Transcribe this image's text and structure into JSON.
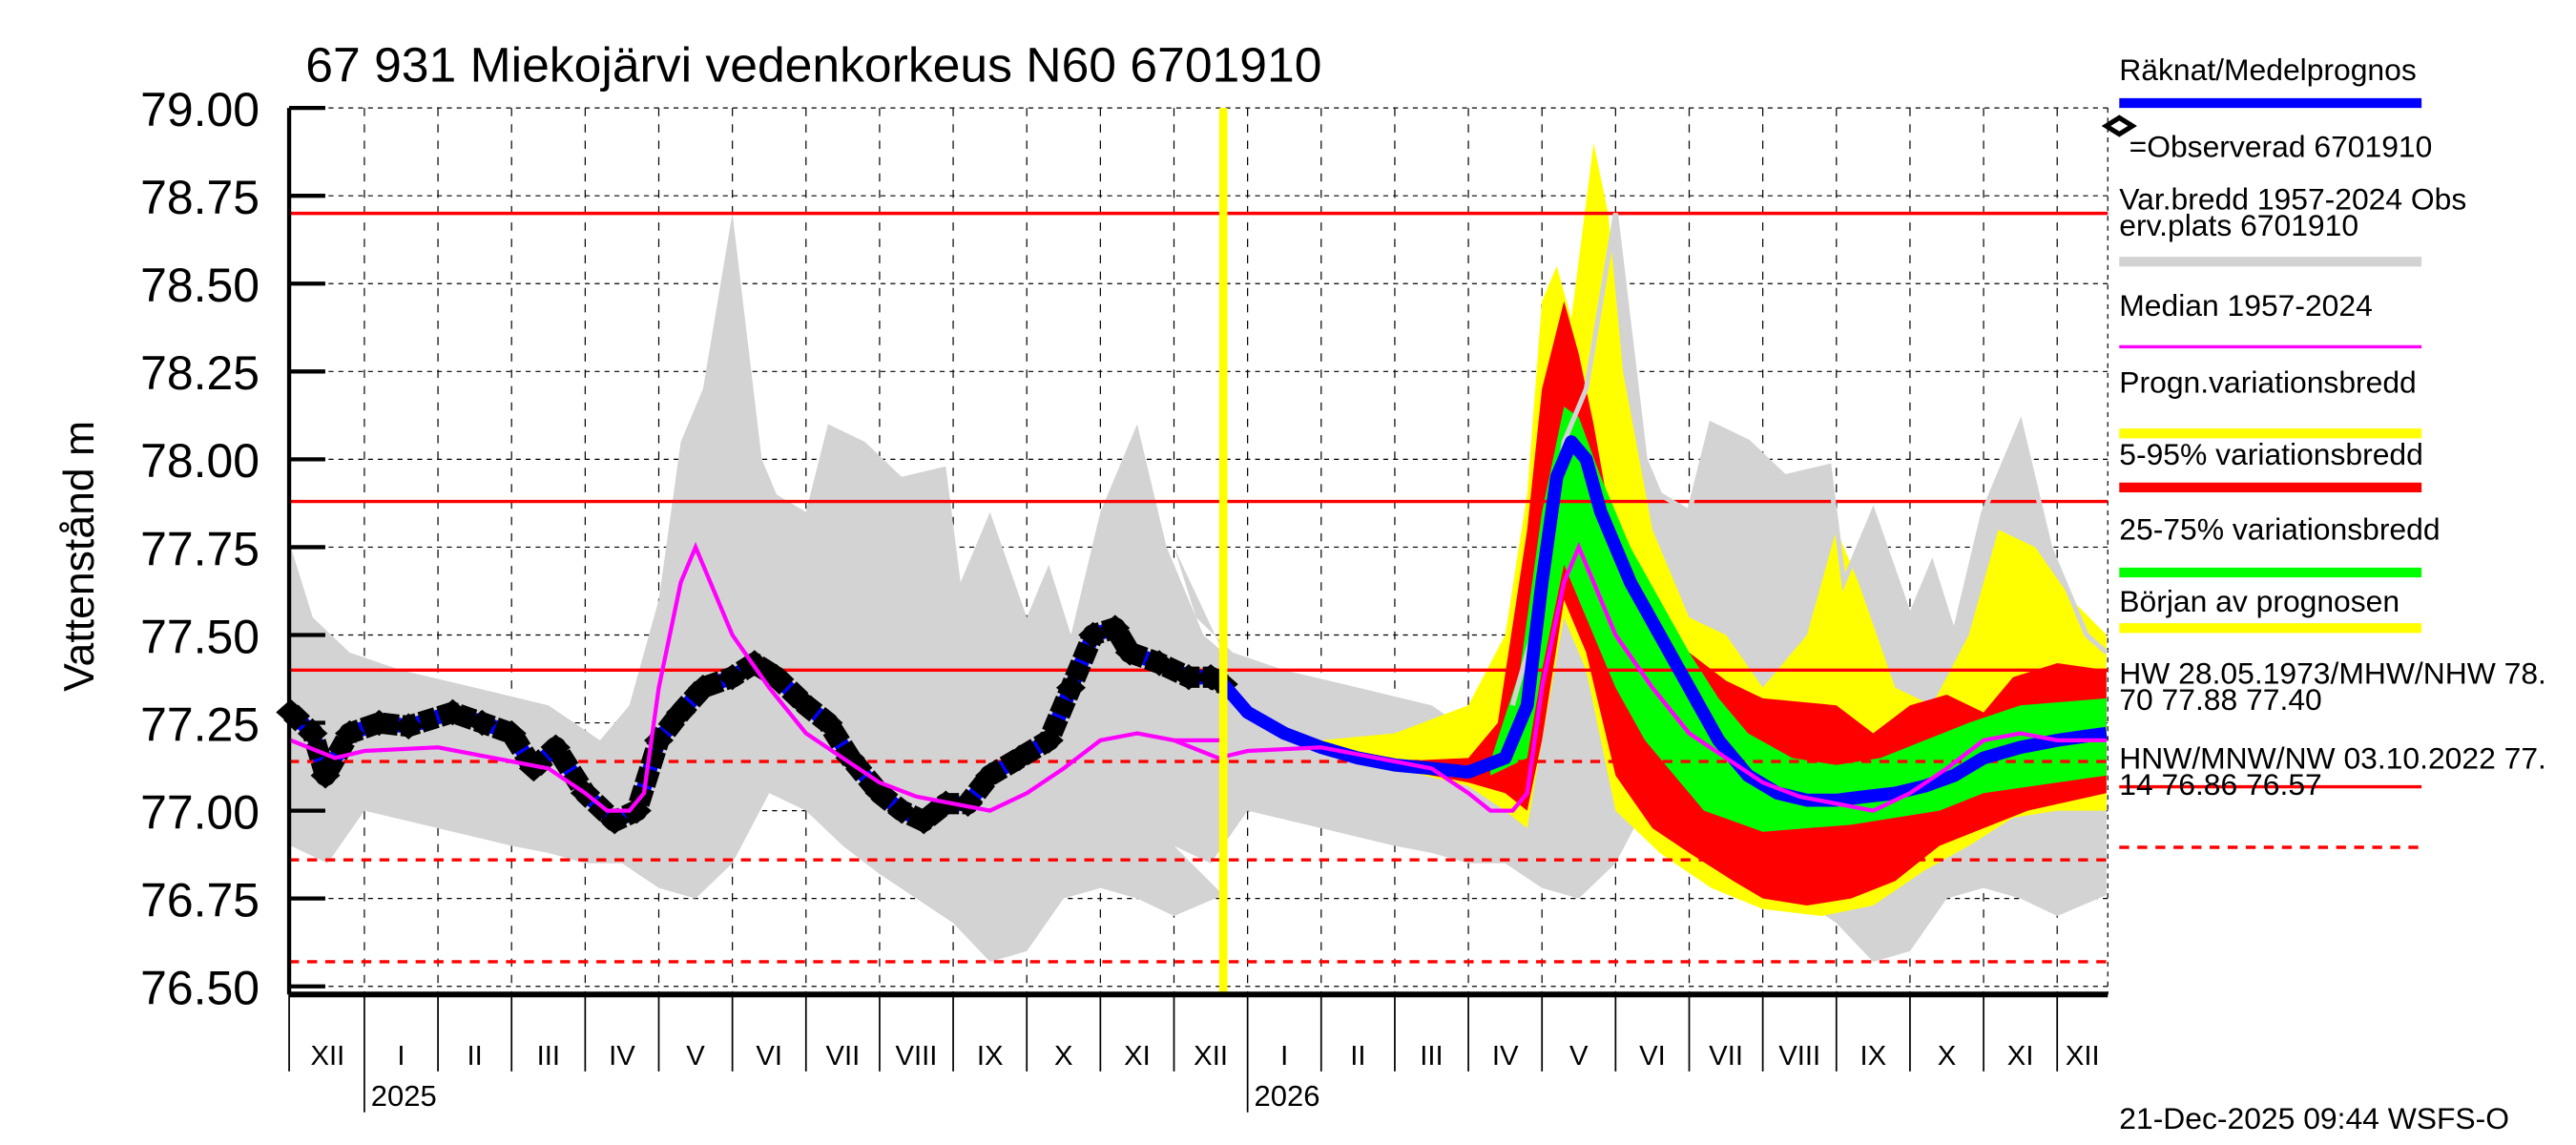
{
  "chart_data": {
    "type": "area",
    "title": "67 931 Miekojärvi vedenkorkeus N60 6701910",
    "ylabel": "Vattenstånd m",
    "ylim": [
      76.5,
      79.0
    ],
    "yticks": [
      "79.00",
      "78.75",
      "78.50",
      "78.25",
      "78.00",
      "77.75",
      "77.50",
      "77.25",
      "77.00",
      "76.75",
      "76.50"
    ],
    "x_unit": "months since 1 Dec 2024",
    "xlim": [
      0,
      24.67
    ],
    "month_labels": [
      "XII",
      "I",
      "II",
      "III",
      "IV",
      "V",
      "VI",
      "VII",
      "VIII",
      "IX",
      "X",
      "XI",
      "XII",
      "I",
      "II",
      "III",
      "IV",
      "V",
      "VI",
      "VII",
      "VIII",
      "IX",
      "X",
      "XI",
      "XII"
    ],
    "year_labels": [
      {
        "label": "2025",
        "month": 1
      },
      {
        "label": "2026",
        "month": 13
      }
    ],
    "forecast_start": 12.67,
    "grid": true,
    "legend_position": "right",
    "legend": [
      {
        "label": "Räknat/Medelprognos",
        "color": "#0000ff"
      },
      {
        "label": "=Observerad 6701910",
        "color": "#000000"
      },
      {
        "label": "Var.bredd 1957-2024   Obs",
        "label2": "erv.plats 6701910",
        "color": "#d3d3d3"
      },
      {
        "label": "Median 1957-2024",
        "color": "#ff00ff"
      },
      {
        "label": "Progn.variationsbredd",
        "color": "#ffff00"
      },
      {
        "label": "5-95% variationsbredd",
        "color": "#ff0000"
      },
      {
        "label": "25-75% variationsbredd",
        "color": "#00ff00"
      },
      {
        "label": "Början av prognosen",
        "color": "#ffff00"
      },
      {
        "label": "HW 28.05.1973/MHW/NHW 78.",
        "label2": "70 77.88 77.40",
        "color": "#ff0000"
      },
      {
        "label": "HNW/MNW/NW 03.10.2022 77.",
        "label2": "14 76.86 76.57",
        "color": "#ff0000",
        "dashed": true
      }
    ],
    "ref_lines_solid": [
      78.7,
      77.88,
      77.4
    ],
    "ref_lines_dashed": [
      77.14,
      76.86,
      76.57
    ],
    "climatology_repeats_months": 12,
    "hist_upper": [
      [
        0,
        77.75
      ],
      [
        0.3,
        77.55
      ],
      [
        0.8,
        77.45
      ],
      [
        1.5,
        77.4
      ],
      [
        2.5,
        77.35
      ],
      [
        3.5,
        77.3
      ],
      [
        4.2,
        77.2
      ],
      [
        4.6,
        77.3
      ],
      [
        5.0,
        77.6
      ],
      [
        5.3,
        78.05
      ],
      [
        5.6,
        78.2
      ],
      [
        6.0,
        78.7
      ],
      [
        6.4,
        78.0
      ],
      [
        6.6,
        77.9
      ],
      [
        7.0,
        77.85
      ],
      [
        7.3,
        78.1
      ],
      [
        7.8,
        78.05
      ],
      [
        8.3,
        77.95
      ],
      [
        8.9,
        77.98
      ],
      [
        9.1,
        77.65
      ],
      [
        9.5,
        77.85
      ],
      [
        10,
        77.55
      ],
      [
        10.3,
        77.7
      ],
      [
        10.6,
        77.5
      ],
      [
        11.0,
        77.85
      ],
      [
        11.5,
        78.1
      ],
      [
        11.9,
        77.75
      ],
      [
        12.4,
        77.5
      ],
      [
        12.67,
        77.45
      ]
    ],
    "hist_lower": [
      [
        0,
        76.9
      ],
      [
        0.5,
        76.85
      ],
      [
        1,
        77.0
      ],
      [
        2,
        76.95
      ],
      [
        3,
        76.9
      ],
      [
        3.5,
        76.88
      ],
      [
        4,
        76.85
      ],
      [
        4.5,
        76.85
      ],
      [
        5,
        76.78
      ],
      [
        5.5,
        76.75
      ],
      [
        6,
        76.85
      ],
      [
        6.5,
        77.05
      ],
      [
        7,
        77.0
      ],
      [
        7.5,
        76.9
      ],
      [
        8,
        76.82
      ],
      [
        8.5,
        76.75
      ],
      [
        9,
        76.68
      ],
      [
        9.5,
        76.57
      ],
      [
        10,
        76.6
      ],
      [
        10.5,
        76.75
      ],
      [
        11,
        76.78
      ],
      [
        11.5,
        76.75
      ],
      [
        12,
        76.7
      ],
      [
        12.67,
        76.76
      ]
    ],
    "median": [
      [
        0,
        77.2
      ],
      [
        0.6,
        77.15
      ],
      [
        1,
        77.17
      ],
      [
        2,
        77.18
      ],
      [
        2.5,
        77.16
      ],
      [
        3,
        77.14
      ],
      [
        3.5,
        77.12
      ],
      [
        4,
        77.05
      ],
      [
        4.3,
        77.0
      ],
      [
        4.6,
        77.0
      ],
      [
        4.8,
        77.05
      ],
      [
        5.0,
        77.35
      ],
      [
        5.3,
        77.65
      ],
      [
        5.5,
        77.75
      ],
      [
        5.7,
        77.65
      ],
      [
        6.0,
        77.5
      ],
      [
        6.5,
        77.35
      ],
      [
        7,
        77.22
      ],
      [
        7.5,
        77.15
      ],
      [
        8,
        77.08
      ],
      [
        8.5,
        77.04
      ],
      [
        9,
        77.02
      ],
      [
        9.5,
        77.0
      ],
      [
        10,
        77.05
      ],
      [
        10.5,
        77.12
      ],
      [
        11,
        77.2
      ],
      [
        11.5,
        77.22
      ],
      [
        12,
        77.2
      ],
      [
        12.67,
        77.2
      ]
    ],
    "observed": [
      [
        0,
        77.28
      ],
      [
        0.3,
        77.22
      ],
      [
        0.47,
        77.1
      ],
      [
        0.8,
        77.22
      ],
      [
        1.2,
        77.25
      ],
      [
        1.6,
        77.24
      ],
      [
        2.2,
        77.28
      ],
      [
        2.6,
        77.25
      ],
      [
        3,
        77.22
      ],
      [
        3.3,
        77.12
      ],
      [
        3.6,
        77.18
      ],
      [
        4,
        77.05
      ],
      [
        4.4,
        76.97
      ],
      [
        4.7,
        77.0
      ],
      [
        5.0,
        77.2
      ],
      [
        5.3,
        77.28
      ],
      [
        5.6,
        77.35
      ],
      [
        6.0,
        77.38
      ],
      [
        6.3,
        77.42
      ],
      [
        6.6,
        77.38
      ],
      [
        7.0,
        77.3
      ],
      [
        7.3,
        77.25
      ],
      [
        7.6,
        77.15
      ],
      [
        8.0,
        77.05
      ],
      [
        8.3,
        77.0
      ],
      [
        8.6,
        76.97
      ],
      [
        8.9,
        77.02
      ],
      [
        9.2,
        77.02
      ],
      [
        9.5,
        77.1
      ],
      [
        9.9,
        77.15
      ],
      [
        10.3,
        77.2
      ],
      [
        10.6,
        77.35
      ],
      [
        10.9,
        77.5
      ],
      [
        11.2,
        77.52
      ],
      [
        11.4,
        77.45
      ],
      [
        11.8,
        77.42
      ],
      [
        12.2,
        77.38
      ],
      [
        12.5,
        77.38
      ],
      [
        12.67,
        77.36
      ]
    ],
    "mean_forecast": [
      [
        12.67,
        77.36
      ],
      [
        13.0,
        77.28
      ],
      [
        13.5,
        77.22
      ],
      [
        14,
        77.18
      ],
      [
        14.5,
        77.15
      ],
      [
        15,
        77.13
      ],
      [
        15.5,
        77.12
      ],
      [
        16,
        77.11
      ],
      [
        16.5,
        77.15
      ],
      [
        16.8,
        77.3
      ],
      [
        17.0,
        77.65
      ],
      [
        17.2,
        77.95
      ],
      [
        17.4,
        78.05
      ],
      [
        17.6,
        78.0
      ],
      [
        17.8,
        77.85
      ],
      [
        18.2,
        77.65
      ],
      [
        18.6,
        77.5
      ],
      [
        19,
        77.35
      ],
      [
        19.4,
        77.2
      ],
      [
        19.8,
        77.1
      ],
      [
        20.2,
        77.05
      ],
      [
        20.6,
        77.03
      ],
      [
        21,
        77.03
      ],
      [
        21.4,
        77.04
      ],
      [
        21.8,
        77.05
      ],
      [
        22.2,
        77.07
      ],
      [
        22.6,
        77.1
      ],
      [
        23,
        77.15
      ],
      [
        23.5,
        77.18
      ],
      [
        24,
        77.2
      ],
      [
        24.67,
        77.22
      ]
    ],
    "p25_75_upper": [
      [
        16.3,
        77.14
      ],
      [
        16.7,
        77.4
      ],
      [
        17.0,
        77.85
      ],
      [
        17.3,
        78.15
      ],
      [
        17.5,
        78.12
      ],
      [
        17.8,
        77.95
      ],
      [
        18.2,
        77.75
      ],
      [
        18.6,
        77.6
      ],
      [
        19,
        77.45
      ],
      [
        19.4,
        77.32
      ],
      [
        19.8,
        77.22
      ],
      [
        20.4,
        77.15
      ],
      [
        21,
        77.13
      ],
      [
        21.6,
        77.15
      ],
      [
        22.2,
        77.2
      ],
      [
        22.8,
        77.25
      ],
      [
        23.5,
        77.3
      ],
      [
        24.67,
        77.32
      ]
    ],
    "p25_75_lower": [
      [
        16.3,
        77.1
      ],
      [
        16.8,
        77.15
      ],
      [
        17.0,
        77.4
      ],
      [
        17.3,
        77.7
      ],
      [
        17.6,
        77.55
      ],
      [
        18,
        77.35
      ],
      [
        18.4,
        77.2
      ],
      [
        18.8,
        77.1
      ],
      [
        19.2,
        77.0
      ],
      [
        19.6,
        76.97
      ],
      [
        20,
        76.94
      ],
      [
        20.6,
        76.95
      ],
      [
        21.2,
        76.96
      ],
      [
        21.8,
        76.98
      ],
      [
        22.4,
        77.0
      ],
      [
        23,
        77.05
      ],
      [
        24,
        77.08
      ],
      [
        24.67,
        77.1
      ]
    ],
    "p5_95_upper": [
      [
        15,
        77.14
      ],
      [
        16,
        77.15
      ],
      [
        16.4,
        77.25
      ],
      [
        16.8,
        77.8
      ],
      [
        17.0,
        78.2
      ],
      [
        17.3,
        78.45
      ],
      [
        17.5,
        78.3
      ],
      [
        17.7,
        78.1
      ],
      [
        18,
        77.75
      ],
      [
        18.5,
        77.55
      ],
      [
        19,
        77.45
      ],
      [
        19.5,
        77.37
      ],
      [
        20,
        77.32
      ],
      [
        21,
        77.3
      ],
      [
        21.5,
        77.22
      ],
      [
        22,
        77.3
      ],
      [
        22.5,
        77.33
      ],
      [
        23.0,
        77.28
      ],
      [
        23.4,
        77.38
      ],
      [
        24,
        77.42
      ],
      [
        24.67,
        77.4
      ]
    ],
    "p5_95_lower": [
      [
        15,
        77.12
      ],
      [
        16,
        77.08
      ],
      [
        16.5,
        77.05
      ],
      [
        16.8,
        77.0
      ],
      [
        17.0,
        77.2
      ],
      [
        17.3,
        77.6
      ],
      [
        17.6,
        77.45
      ],
      [
        18,
        77.1
      ],
      [
        18.5,
        76.95
      ],
      [
        19,
        76.88
      ],
      [
        19.6,
        76.8
      ],
      [
        20,
        76.75
      ],
      [
        20.6,
        76.73
      ],
      [
        21.2,
        76.75
      ],
      [
        21.8,
        76.8
      ],
      [
        22.4,
        76.9
      ],
      [
        23,
        76.95
      ],
      [
        23.6,
        77.0
      ],
      [
        24.67,
        77.05
      ]
    ],
    "prog_upper": [
      [
        12.67,
        77.36
      ],
      [
        13,
        77.28
      ],
      [
        14,
        77.2
      ],
      [
        15,
        77.22
      ],
      [
        16,
        77.3
      ],
      [
        16.5,
        77.5
      ],
      [
        16.8,
        77.9
      ],
      [
        17.0,
        78.45
      ],
      [
        17.2,
        78.55
      ],
      [
        17.4,
        78.4
      ],
      [
        17.7,
        78.9
      ],
      [
        17.9,
        78.7
      ],
      [
        18.1,
        78.25
      ],
      [
        18.5,
        77.8
      ],
      [
        19,
        77.55
      ],
      [
        19.5,
        77.5
      ],
      [
        20,
        77.35
      ],
      [
        20.6,
        77.5
      ],
      [
        21,
        77.8
      ],
      [
        21.3,
        77.65
      ],
      [
        21.8,
        77.35
      ],
      [
        22.3,
        77.3
      ],
      [
        22.8,
        77.5
      ],
      [
        23.2,
        77.8
      ],
      [
        23.7,
        77.75
      ],
      [
        24.2,
        77.6
      ],
      [
        24.67,
        77.5
      ]
    ],
    "prog_lower": [
      [
        12.67,
        77.36
      ],
      [
        13,
        77.28
      ],
      [
        14,
        77.17
      ],
      [
        15,
        77.12
      ],
      [
        16,
        77.07
      ],
      [
        16.5,
        77.0
      ],
      [
        16.8,
        76.95
      ],
      [
        17.0,
        77.2
      ],
      [
        17.3,
        77.55
      ],
      [
        17.6,
        77.4
      ],
      [
        18,
        77.0
      ],
      [
        18.6,
        76.88
      ],
      [
        19.3,
        76.78
      ],
      [
        20,
        76.72
      ],
      [
        20.8,
        76.7
      ],
      [
        21.5,
        76.73
      ],
      [
        22.2,
        76.83
      ],
      [
        22.8,
        76.9
      ],
      [
        23.4,
        76.98
      ],
      [
        24,
        77.0
      ],
      [
        24.67,
        77.0
      ]
    ]
  },
  "footer": {
    "timestamp": "21-Dec-2025 09:44 WSFS-O"
  }
}
